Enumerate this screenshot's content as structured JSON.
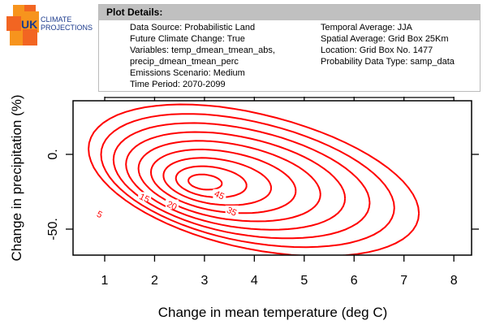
{
  "logo": {
    "line1": "UK",
    "line2": "CLIMATE",
    "line3": "PROJECTIONS",
    "colors": [
      "#f26522",
      "#f7941d",
      "#1b3a8c"
    ]
  },
  "details": {
    "title": "Plot Details:",
    "left": [
      "Data Source: Probabilistic Land",
      "Future Climate Change: True",
      "Variables: temp_dmean_tmean_abs, precip_dmean_tmean_perc",
      "Emissions Scenario: Medium",
      "Time Period: 2070-2099"
    ],
    "right": [
      "Temporal Average: JJA",
      "Spatial Average: Grid Box 25Km",
      "Location: Grid Box No. 1477",
      "Probability Data Type: samp_data"
    ]
  },
  "chart_data": {
    "type": "contour",
    "xlabel": "Change in mean temperature (deg C)",
    "ylabel": "Change in precipitation (%)",
    "xlim": [
      0.37,
      8.35
    ],
    "ylim": [
      -67,
      36
    ],
    "xticks": [
      "1",
      "2",
      "3",
      "4",
      "5",
      "6",
      "7",
      "8"
    ],
    "yticks": [
      "0.",
      "-50."
    ],
    "ytick_values": [
      0,
      -50
    ],
    "line_color": "#ff0000",
    "levels": [
      5,
      10,
      15,
      20,
      25,
      30,
      35,
      40,
      45
    ],
    "contour_labels": [
      {
        "text": "5",
        "x": 0.9,
        "y": -40
      },
      {
        "text": "15",
        "x": 1.8,
        "y": -29
      },
      {
        "text": "20",
        "x": 2.35,
        "y": -34
      },
      {
        "text": "35",
        "x": 3.55,
        "y": -38
      },
      {
        "text": "45",
        "x": 3.3,
        "y": -27
      }
    ]
  }
}
